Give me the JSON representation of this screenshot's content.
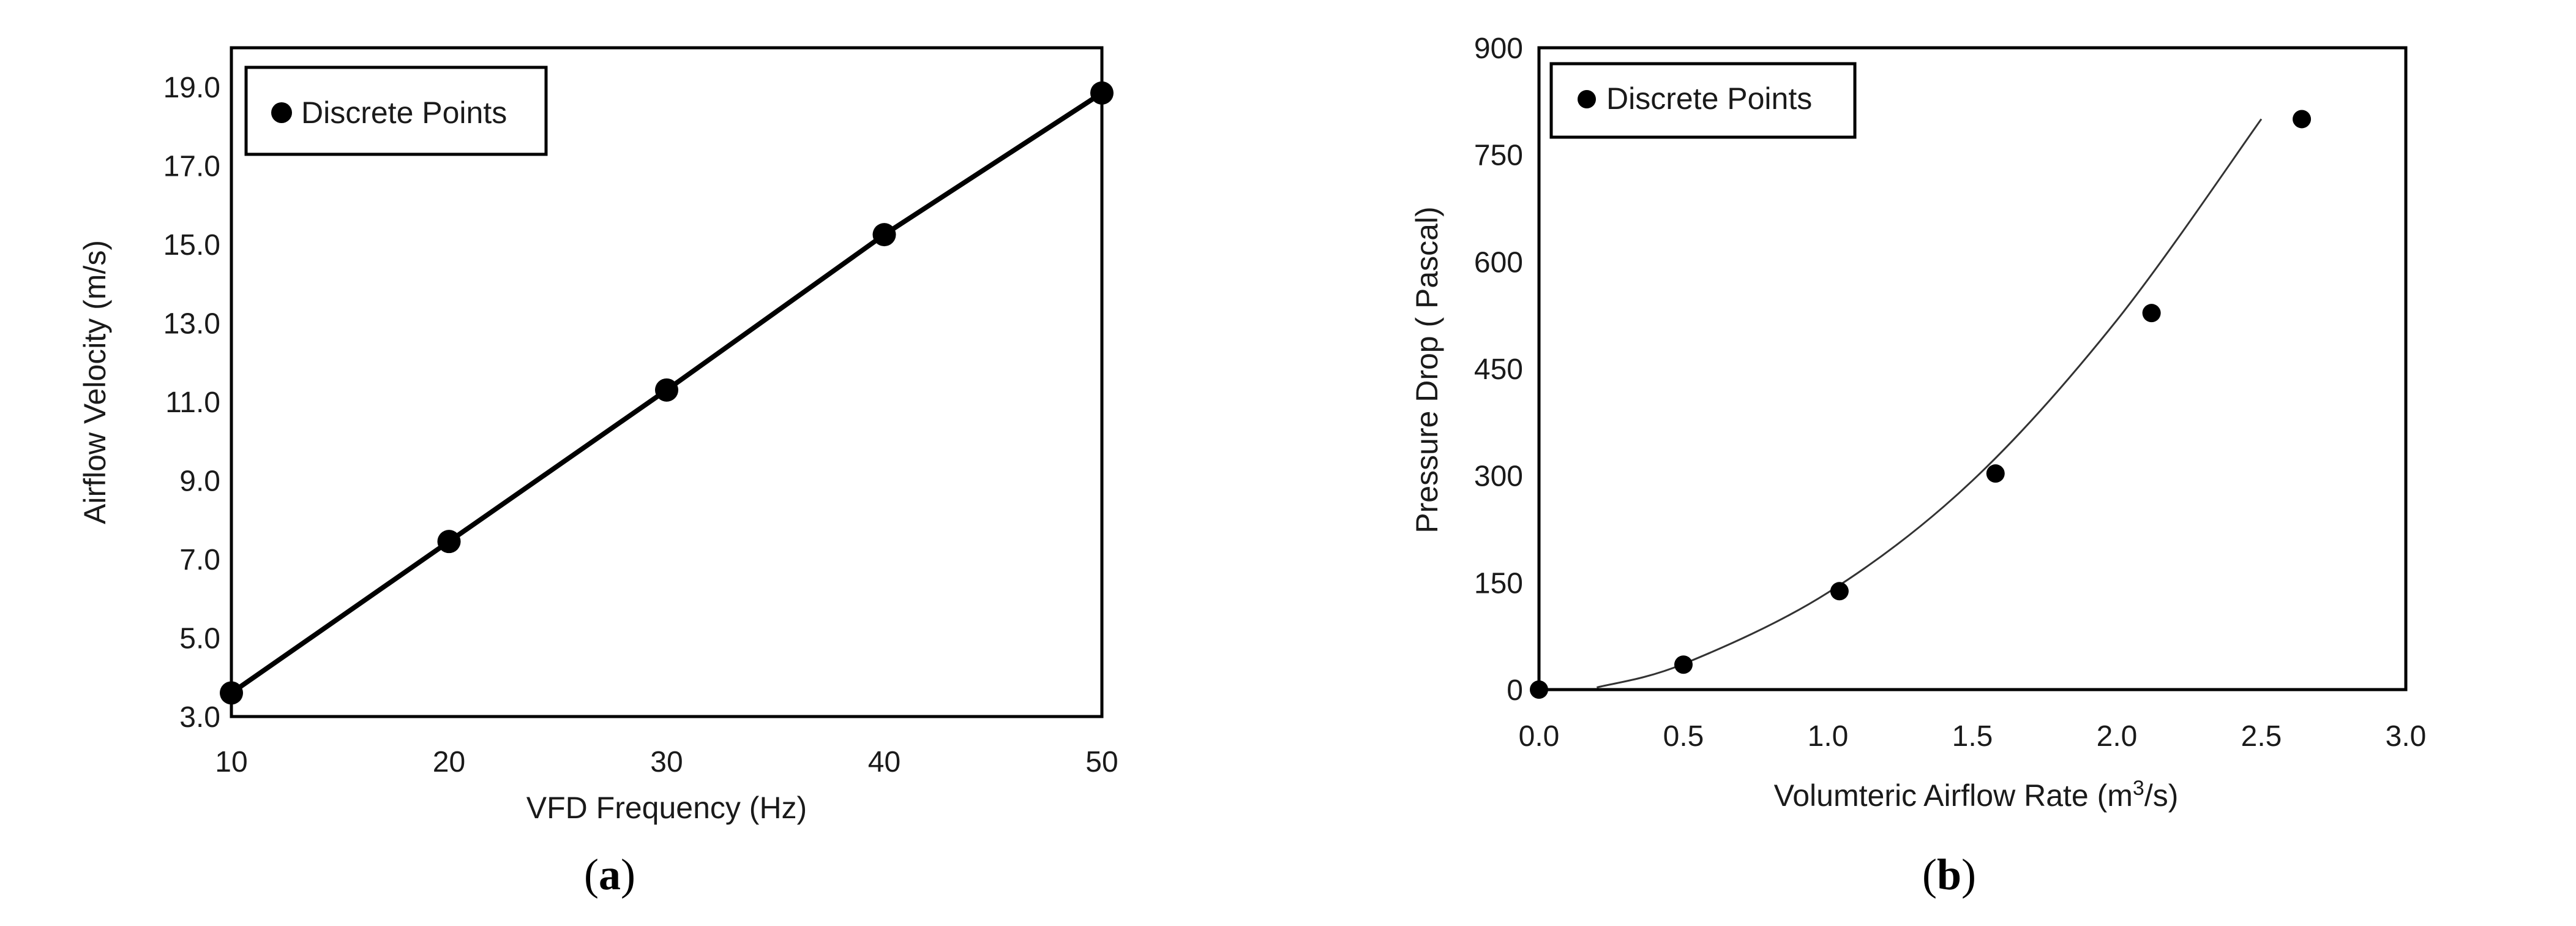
{
  "chart_data": [
    {
      "type": "line",
      "panel_label": "a",
      "xlabel": "VFD Frequency (Hz)",
      "ylabel": "Airflow Velocity (m/s)",
      "xlim": [
        10,
        50
      ],
      "ylim": [
        3.0,
        20.0
      ],
      "x_ticks": [
        "10",
        "20",
        "30",
        "40",
        "50"
      ],
      "y_ticks": [
        "3.0",
        "5.0",
        "7.0",
        "9.0",
        "11.0",
        "13.0",
        "15.0",
        "17.0",
        "19.0"
      ],
      "legend": {
        "position": "top-left",
        "entries": [
          "Discrete Points"
        ]
      },
      "grid": false,
      "series": [
        {
          "name": "Discrete Points",
          "x": [
            10,
            20,
            30,
            40,
            50
          ],
          "y": [
            3.6,
            7.45,
            11.3,
            15.25,
            18.85
          ],
          "line": true
        }
      ]
    },
    {
      "type": "scatter",
      "panel_label": "b",
      "xlabel_parts": [
        "Volumteric Airflow Rate (m",
        "3",
        "/s)"
      ],
      "ylabel": "Pressure Drop ( Pascal)",
      "xlim": [
        0.0,
        3.0
      ],
      "ylim": [
        0,
        900
      ],
      "x_ticks": [
        "0.0",
        "0.5",
        "1.0",
        "1.5",
        "2.0",
        "2.5",
        "3.0"
      ],
      "y_ticks": [
        "0",
        "150",
        "300",
        "450",
        "600",
        "750",
        "900"
      ],
      "legend": {
        "position": "top-left",
        "entries": [
          "Discrete Points"
        ]
      },
      "grid": false,
      "series": [
        {
          "name": "Discrete Points",
          "x": [
            0.0,
            0.5,
            1.04,
            1.58,
            2.12,
            2.64
          ],
          "y": [
            0,
            35,
            138,
            303,
            528,
            800
          ]
        }
      ],
      "fit_curve": {
        "x": [
          0.2,
          0.5,
          1.0,
          1.5,
          2.0,
          2.5
        ],
        "y": [
          3,
          36,
          136,
          293,
          518,
          800
        ]
      }
    }
  ]
}
